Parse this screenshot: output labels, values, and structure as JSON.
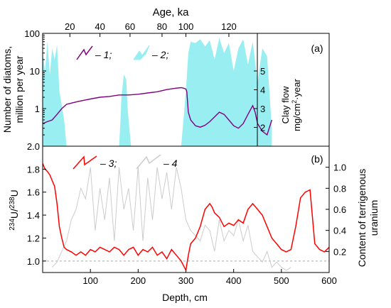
{
  "chart_data": [
    {
      "panel_label": "(a)",
      "type": "line",
      "x_axis": {
        "label": "Depth, cm",
        "range": [
          0,
          600
        ]
      },
      "top_axis": {
        "label": "Age, ka",
        "ticks": [
          20,
          40,
          60,
          80,
          100,
          120
        ],
        "tick_depth_positions": [
          57,
          120,
          183,
          250,
          300,
          390
        ]
      },
      "y_left": {
        "label_line1": "Number of diatoms,",
        "label_line2": "million per year",
        "scale": "log",
        "range": [
          0.1,
          100
        ],
        "ticks": [
          1,
          10,
          100
        ],
        "tick_labels": [
          "1",
          "10",
          "100"
        ]
      },
      "y_right": {
        "label_line1": "Clay flow",
        "label_line2_pre": "mg/cm",
        "label_line2_sup": "2",
        "label_line2_post": "·year",
        "range": [
          1,
          7
        ],
        "ticks": [
          2,
          3,
          4,
          5
        ],
        "tick_labels": [
          "2",
          "3",
          "4",
          "5"
        ]
      },
      "legend": {
        "placement": "top-left",
        "items": [
          {
            "label": "– 1;",
            "color": "#800080",
            "style": "line"
          },
          {
            "label": "– 2;",
            "color": "#99EEF2",
            "style": "area"
          }
        ]
      },
      "series": [
        {
          "key": "1",
          "type": "line",
          "color": "#800080",
          "axis": "left",
          "x": [
            0,
            10,
            20,
            30,
            40,
            50,
            60,
            70,
            80,
            90,
            100,
            120,
            140,
            160,
            180,
            200,
            220,
            240,
            260,
            280,
            290,
            295,
            300,
            302,
            305,
            310,
            320,
            330,
            340,
            350,
            360,
            370,
            380,
            390,
            400,
            410,
            420,
            430,
            440,
            445,
            450,
            460,
            470,
            480
          ],
          "y": [
            0.4,
            0.45,
            0.5,
            0.7,
            1.0,
            1.3,
            1.4,
            1.5,
            1.6,
            1.7,
            1.8,
            2.0,
            2.1,
            2.3,
            2.3,
            2.4,
            2.6,
            2.8,
            3.2,
            3.5,
            3.6,
            3.5,
            3.3,
            2.8,
            0.8,
            0.5,
            0.35,
            0.32,
            0.36,
            0.45,
            0.6,
            0.8,
            0.7,
            0.5,
            0.35,
            0.3,
            0.4,
            0.7,
            1.2,
            0.8,
            0.4,
            0.25,
            0.2,
            0.5
          ]
        },
        {
          "key": "2",
          "type": "area",
          "color": "#99EEF2",
          "axis": "left",
          "x": [
            0,
            5,
            10,
            15,
            20,
            25,
            30,
            35,
            40,
            45,
            50,
            160,
            163,
            165,
            170,
            175,
            178,
            180,
            185,
            290,
            295,
            300,
            305,
            310,
            320,
            330,
            340,
            350,
            360,
            370,
            380,
            390,
            400,
            410,
            420,
            430,
            440,
            450,
            460,
            470,
            480
          ],
          "y": [
            30,
            10,
            60,
            8,
            40,
            20,
            50,
            3,
            1.2,
            0.5,
            0.1,
            0.1,
            0.5,
            2,
            8,
            6,
            1,
            0.5,
            0.1,
            0.1,
            0.5,
            3,
            30,
            60,
            55,
            70,
            45,
            65,
            20,
            75,
            30,
            55,
            10,
            40,
            70,
            15,
            60,
            5,
            40,
            25,
            0.3
          ]
        }
      ]
    },
    {
      "panel_label": "(b)",
      "type": "line",
      "x_axis": {
        "label": "Depth, cm",
        "range": [
          0,
          600
        ],
        "ticks": [
          100,
          200,
          300,
          400,
          500,
          600
        ],
        "tick_labels": [
          "100",
          "200",
          "300",
          "400",
          "500",
          "600"
        ]
      },
      "y_left": {
        "label_sup1": "234",
        "label_mid": "U/",
        "label_sup2": "238",
        "label_end": "U",
        "range": [
          0.9,
          2.0
        ],
        "ticks": [
          1.0,
          1.2,
          1.4,
          1.6,
          1.8,
          2.0
        ],
        "tick_labels": [
          "1.0",
          "1.2",
          "1.4",
          "1.6",
          "1.8",
          "2.0"
        ]
      },
      "y_right": {
        "label_line1": "Content of terrigenous",
        "label_line2": "uranium",
        "range": [
          0,
          1.2
        ],
        "ticks": [
          0.2,
          0.4,
          0.6,
          0.8,
          1.0
        ],
        "tick_labels": [
          "0.2",
          "0.4",
          "0.6",
          "0.8",
          "1.0"
        ]
      },
      "reference_line": {
        "y": 1.0,
        "style": "dashed",
        "color": "#aaaaaa"
      },
      "legend": {
        "placement": "top-left",
        "items": [
          {
            "label": "– 3;",
            "color": "#ff0000",
            "style": "line"
          },
          {
            "label": "– 4",
            "color": "#cccccc",
            "style": "line"
          }
        ]
      },
      "series": [
        {
          "key": "3",
          "type": "line",
          "color": "#ff0000",
          "axis": "left",
          "x": [
            0,
            5,
            10,
            15,
            20,
            25,
            30,
            35,
            40,
            45,
            50,
            60,
            70,
            80,
            90,
            100,
            110,
            120,
            130,
            140,
            150,
            160,
            170,
            180,
            190,
            200,
            210,
            220,
            230,
            240,
            250,
            260,
            270,
            280,
            290,
            300,
            305,
            310,
            320,
            330,
            340,
            350,
            355,
            360,
            370,
            380,
            390,
            400,
            410,
            420,
            430,
            440,
            450,
            460,
            470,
            480,
            490,
            500,
            510,
            520,
            530,
            540,
            550,
            560,
            570,
            580,
            590,
            600
          ],
          "y": [
            1.85,
            1.8,
            1.78,
            1.75,
            1.7,
            1.65,
            1.5,
            1.3,
            1.2,
            1.12,
            1.1,
            1.08,
            1.05,
            1.08,
            1.05,
            1.1,
            1.08,
            1.12,
            1.1,
            1.08,
            1.12,
            1.1,
            1.05,
            1.1,
            1.12,
            1.05,
            1.1,
            1.08,
            1.12,
            1.05,
            1.08,
            1.02,
            1.1,
            1.05,
            1.0,
            0.92,
            1.05,
            1.15,
            1.2,
            1.3,
            1.45,
            1.5,
            1.47,
            1.42,
            1.38,
            1.3,
            1.33,
            1.31,
            1.36,
            1.33,
            1.45,
            1.5,
            1.45,
            1.4,
            1.3,
            1.2,
            1.15,
            1.1,
            1.08,
            1.1,
            1.3,
            1.55,
            1.6,
            1.62,
            1.15,
            1.1,
            1.08,
            1.12
          ]
        },
        {
          "key": "4",
          "type": "line",
          "color": "#cccccc",
          "axis": "right",
          "x": [
            20,
            30,
            40,
            50,
            60,
            70,
            80,
            90,
            100,
            110,
            120,
            130,
            140,
            150,
            160,
            170,
            180,
            190,
            200,
            210,
            220,
            230,
            240,
            250,
            260,
            270,
            280,
            290,
            300,
            310,
            320,
            330,
            340,
            350,
            360,
            370,
            380,
            390,
            400,
            410,
            420,
            430,
            440,
            450,
            460,
            470,
            480,
            490,
            500,
            510,
            520
          ],
          "y": [
            0.05,
            0.1,
            0.2,
            0.3,
            0.5,
            0.6,
            0.8,
            0.7,
            1.0,
            0.4,
            0.8,
            0.5,
            0.9,
            0.3,
            1.0,
            0.6,
            0.8,
            0.4,
            1.0,
            0.3,
            0.9,
            0.5,
            1.0,
            0.7,
            0.95,
            0.6,
            1.0,
            0.8,
            0.5,
            0.4,
            0.35,
            0.3,
            0.45,
            0.4,
            0.2,
            0.5,
            0.3,
            0.4,
            0.35,
            0.5,
            0.3,
            0.45,
            0.2,
            0.15,
            0.1,
            0.2,
            0.05,
            0.1,
            0.05,
            0.02,
            0.05
          ]
        }
      ]
    }
  ]
}
